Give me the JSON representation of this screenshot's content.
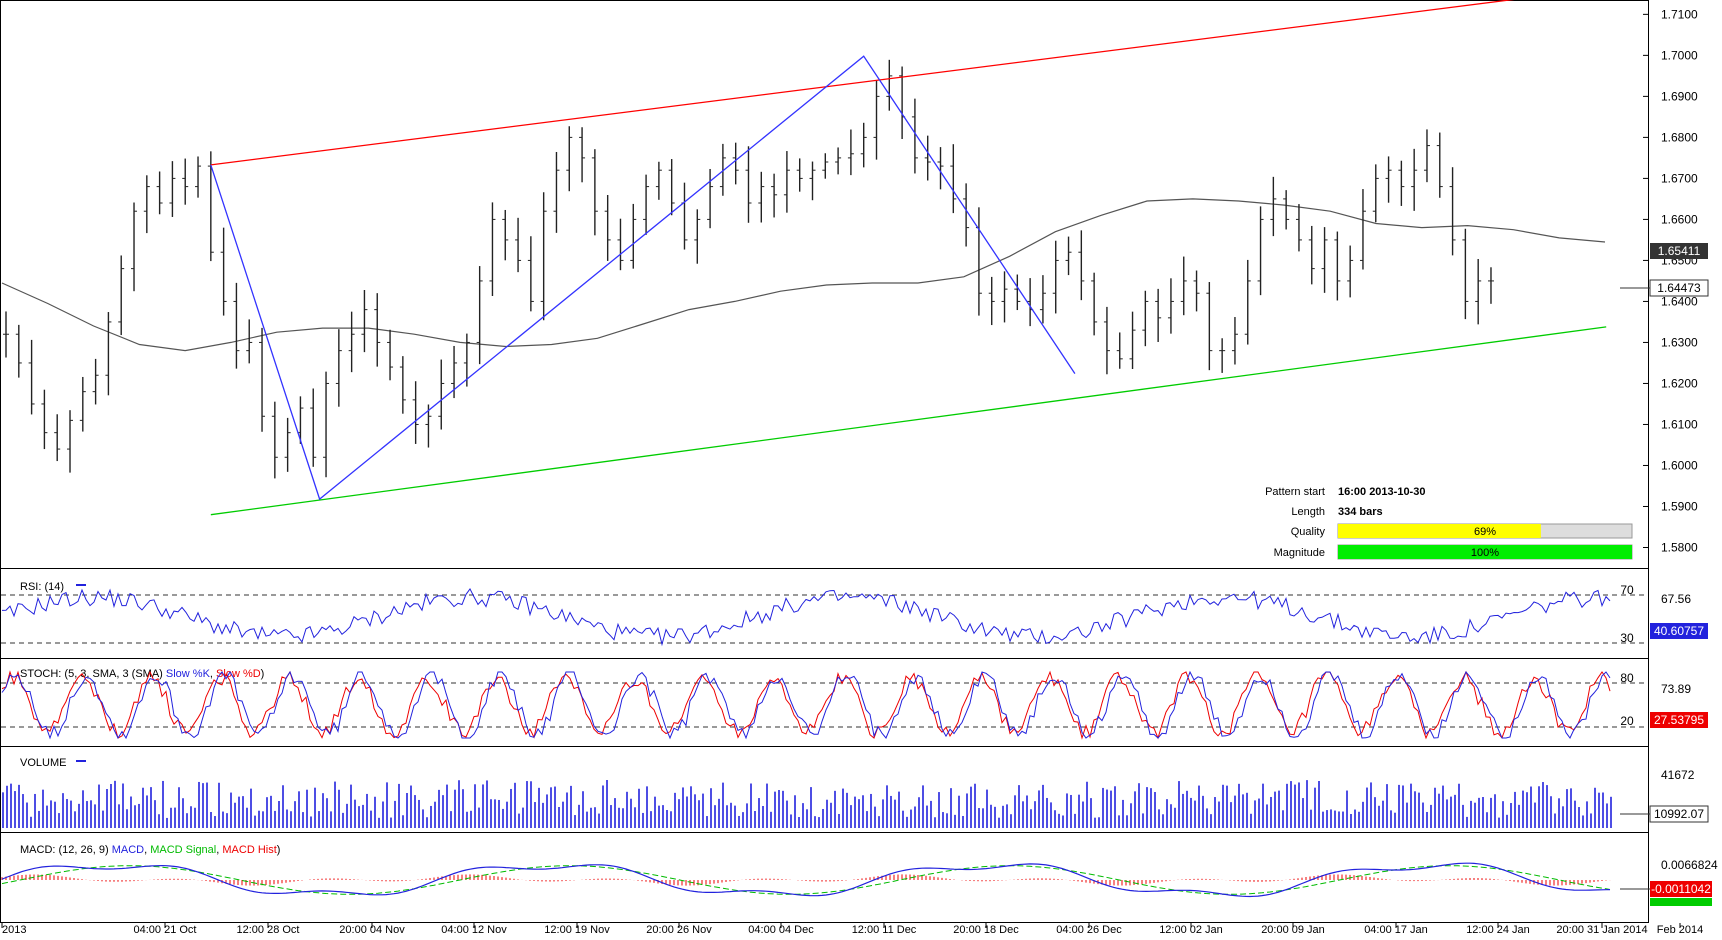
{
  "pattern_info": {
    "start_label": "Pattern start",
    "start_value": "16:00 2013-10-30",
    "length_label": "Length",
    "length_value": "334 bars",
    "quality_label": "Quality",
    "quality_value": "69%",
    "quality_fraction": 0.69,
    "magnitude_label": "Magnitude",
    "magnitude_value": "100%",
    "magnitude_fraction": 1.0
  },
  "colors": {
    "resistance": "#ff0000",
    "support": "#00cc00",
    "pattern": "#3333ff",
    "price_bars": "#222222",
    "moving_average": "#555555",
    "rsi": "#2222dd",
    "stoch_k": "#2222dd",
    "stoch_d": "#ee0000",
    "volume": "#2222dd",
    "macd": "#2222dd",
    "macd_signal": "#00bb00",
    "macd_hist": "#ee0000",
    "quality_bar": "#ffff00",
    "magnitude_bar": "#00ee00",
    "current_price_box": "#333333",
    "indicator_value_box": "#ee0000"
  },
  "chart_data": [
    {
      "type": "candlestick",
      "panel": "price",
      "x_tick_labels": [
        "2013",
        "04:00 21 Oct",
        "12:00 28 Oct",
        "20:00 04 Nov",
        "04:00 12 Nov",
        "12:00 19 Nov",
        "20:00 26 Nov",
        "04:00 04 Dec",
        "12:00 11 Dec",
        "20:00 18 Dec",
        "04:00 26 Dec",
        "12:00 02 Jan",
        "20:00 09 Jan",
        "04:00 17 Jan",
        "12:00 24 Jan",
        "20:00 31 Jan 2014",
        "Feb 2014"
      ],
      "y_tick_labels": [
        "1.7100",
        "1.7000",
        "1.6900",
        "1.6800",
        "1.6700",
        "1.6600",
        "1.6500",
        "1.6400",
        "1.6300",
        "1.6200",
        "1.6100",
        "1.6000",
        "1.5900",
        "1.5800"
      ],
      "ylim": [
        1.575,
        1.7135
      ],
      "grid": false,
      "price_labels": {
        "moving_average": "1.65411",
        "last_close": "1.64473"
      },
      "price_path": [
        1.632,
        1.625,
        1.615,
        1.608,
        1.604,
        1.611,
        1.618,
        1.622,
        1.635,
        1.648,
        1.662,
        1.668,
        1.664,
        1.67,
        1.668,
        1.673,
        1.652,
        1.64,
        1.628,
        1.63,
        1.612,
        1.602,
        1.608,
        1.614,
        1.602,
        1.62,
        1.628,
        1.632,
        1.638,
        1.63,
        1.624,
        1.616,
        1.61,
        1.612,
        1.62,
        1.625,
        1.63,
        1.645,
        1.66,
        1.655,
        1.65,
        1.64,
        1.662,
        1.672,
        1.68,
        1.675,
        1.662,
        1.655,
        1.65,
        1.66,
        1.668,
        1.672,
        1.664,
        1.655,
        1.66,
        1.668,
        1.675,
        1.672,
        1.664,
        1.668,
        1.666,
        1.672,
        1.67,
        1.672,
        1.674,
        1.675,
        1.676,
        1.68,
        1.69,
        1.695,
        1.685,
        1.675,
        1.674,
        1.673,
        1.665,
        1.658,
        1.642,
        1.64,
        1.643,
        1.64,
        1.638,
        1.642,
        1.65,
        1.652,
        1.645,
        1.635,
        1.628,
        1.626,
        1.633,
        1.64,
        1.636,
        1.64,
        1.645,
        1.642,
        1.628,
        1.628,
        1.632,
        1.645,
        1.66,
        1.665,
        1.66,
        1.655,
        1.648,
        1.655,
        1.645,
        1.65,
        1.662,
        1.67,
        1.672,
        1.668,
        1.672,
        1.678,
        1.668,
        1.655,
        1.64,
        1.645,
        1.645
      ],
      "ma_path": [
        1.6445,
        1.6395,
        1.634,
        1.6295,
        1.628,
        1.63,
        1.6325,
        1.6335,
        1.6335,
        1.632,
        1.63,
        1.629,
        1.6295,
        1.631,
        1.6345,
        1.638,
        1.64,
        1.6425,
        1.644,
        1.6445,
        1.6445,
        1.646,
        1.651,
        1.657,
        1.661,
        1.6645,
        1.665,
        1.6645,
        1.6635,
        1.662,
        1.659,
        1.658,
        1.6585,
        1.6575,
        1.6555,
        1.6545
      ],
      "resistance_line": {
        "start": [
          16,
          1.6733
        ],
        "end": [
          125,
          1.7165
        ]
      },
      "support_line": {
        "start": [
          16,
          1.588
        ],
        "end": [
          125,
          1.6338
        ]
      },
      "pattern_points": [
        [
          16,
          1.6733
        ],
        [
          24.5,
          1.5918
        ],
        [
          67,
          1.6998
        ],
        [
          83.5,
          1.6224
        ]
      ]
    },
    {
      "type": "line",
      "panel": "rsi",
      "title": "RSI: (14)",
      "levels": [
        "70",
        "30"
      ],
      "tick_label": "67.56",
      "current_value": "40.60757"
    },
    {
      "type": "line",
      "panel": "stoch",
      "title": "STOCH: (5, 3, SMA, 3 (SMA) ",
      "series": [
        {
          "name": "Slow %K"
        },
        {
          "name": "Slow %D"
        }
      ],
      "levels": [
        "80",
        "20"
      ],
      "tick_label": "73.89",
      "current_value": "27.53795"
    },
    {
      "type": "bar",
      "panel": "volume",
      "title": "VOLUME",
      "tick_label": "41672",
      "current_value": "10992.07"
    },
    {
      "type": "line",
      "panel": "macd",
      "title": "MACD: (12, 26, 9) ",
      "series": [
        {
          "name": "MACD"
        },
        {
          "name": "MACD Signal"
        },
        {
          "name": "MACD Hist"
        }
      ],
      "tick_label": "0.0066824",
      "current_value": "-0.0011042"
    }
  ]
}
